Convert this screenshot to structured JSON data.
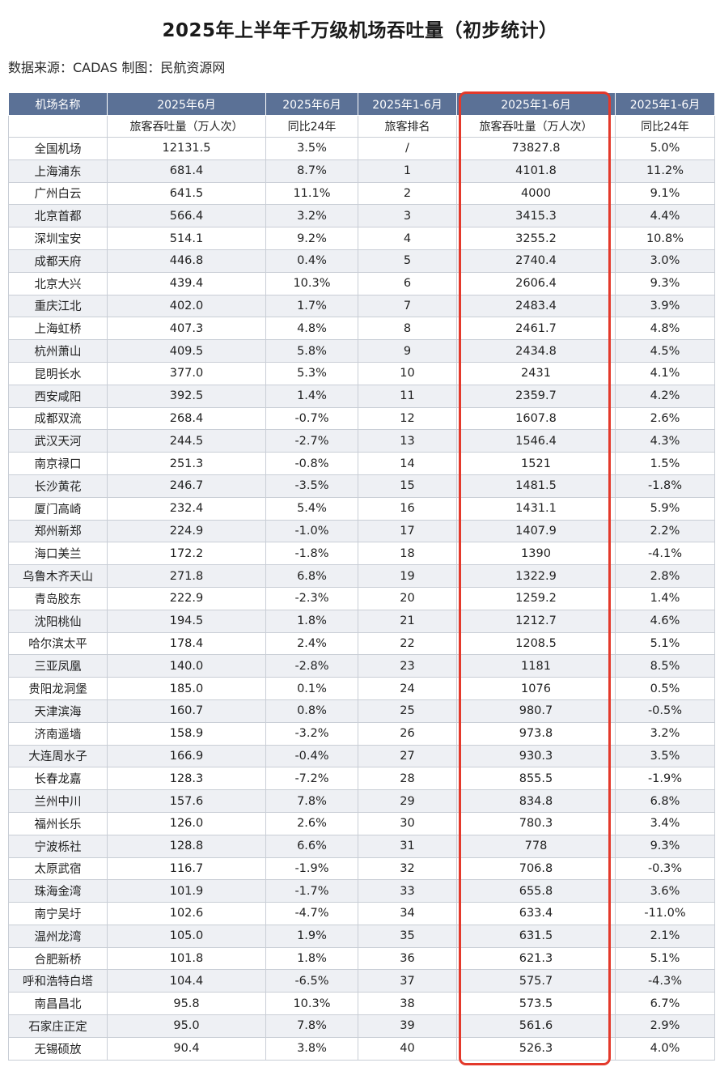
{
  "title": "2025年上半年千万级机场吞吐量（初步统计）",
  "source": "数据来源：CADAS 制图：民航资源网",
  "header_row1": [
    "机场名称",
    "2025年6月",
    "2025年6月",
    "2025年1-6月",
    "2025年1-6月",
    "2025年1-6月"
  ],
  "header_row2": [
    "",
    "旅客吞吐量（万人次）",
    "同比24年",
    "旅客排名",
    "旅客吞吐量（万人次）",
    "同比24年"
  ],
  "rows": [
    [
      "全国机场",
      "12131.5",
      "3.5%",
      "/",
      "73827.8",
      "5.0%"
    ],
    [
      "上海浦东",
      "681.4",
      "8.7%",
      "1",
      "4101.8",
      "11.2%"
    ],
    [
      "广州白云",
      "641.5",
      "11.1%",
      "2",
      "4000",
      "9.1%"
    ],
    [
      "北京首都",
      "566.4",
      "3.2%",
      "3",
      "3415.3",
      "4.4%"
    ],
    [
      "深圳宝安",
      "514.1",
      "9.2%",
      "4",
      "3255.2",
      "10.8%"
    ],
    [
      "成都天府",
      "446.8",
      "0.4%",
      "5",
      "2740.4",
      "3.0%"
    ],
    [
      "北京大兴",
      "439.4",
      "10.3%",
      "6",
      "2606.4",
      "9.3%"
    ],
    [
      "重庆江北",
      "402.0",
      "1.7%",
      "7",
      "2483.4",
      "3.9%"
    ],
    [
      "上海虹桥",
      "407.3",
      "4.8%",
      "8",
      "2461.7",
      "4.8%"
    ],
    [
      "杭州萧山",
      "409.5",
      "5.8%",
      "9",
      "2434.8",
      "4.5%"
    ],
    [
      "昆明长水",
      "377.0",
      "5.3%",
      "10",
      "2431",
      "4.1%"
    ],
    [
      "西安咸阳",
      "392.5",
      "1.4%",
      "11",
      "2359.7",
      "4.2%"
    ],
    [
      "成都双流",
      "268.4",
      "-0.7%",
      "12",
      "1607.8",
      "2.6%"
    ],
    [
      "武汉天河",
      "244.5",
      "-2.7%",
      "13",
      "1546.4",
      "4.3%"
    ],
    [
      "南京禄口",
      "251.3",
      "-0.8%",
      "14",
      "1521",
      "1.5%"
    ],
    [
      "长沙黄花",
      "246.7",
      "-3.5%",
      "15",
      "1481.5",
      "-1.8%"
    ],
    [
      "厦门高崎",
      "232.4",
      "5.4%",
      "16",
      "1431.1",
      "5.9%"
    ],
    [
      "郑州新郑",
      "224.9",
      "-1.0%",
      "17",
      "1407.9",
      "2.2%"
    ],
    [
      "海口美兰",
      "172.2",
      "-1.8%",
      "18",
      "1390",
      "-4.1%"
    ],
    [
      "乌鲁木齐天山",
      "271.8",
      "6.8%",
      "19",
      "1322.9",
      "2.8%"
    ],
    [
      "青岛胶东",
      "222.9",
      "-2.3%",
      "20",
      "1259.2",
      "1.4%"
    ],
    [
      "沈阳桃仙",
      "194.5",
      "1.8%",
      "21",
      "1212.7",
      "4.6%"
    ],
    [
      "哈尔滨太平",
      "178.4",
      "2.4%",
      "22",
      "1208.5",
      "5.1%"
    ],
    [
      "三亚凤凰",
      "140.0",
      "-2.8%",
      "23",
      "1181",
      "8.5%"
    ],
    [
      "贵阳龙洞堡",
      "185.0",
      "0.1%",
      "24",
      "1076",
      "0.5%"
    ],
    [
      "天津滨海",
      "160.7",
      "0.8%",
      "25",
      "980.7",
      "-0.5%"
    ],
    [
      "济南遥墙",
      "158.9",
      "-3.2%",
      "26",
      "973.8",
      "3.2%"
    ],
    [
      "大连周水子",
      "166.9",
      "-0.4%",
      "27",
      "930.3",
      "3.5%"
    ],
    [
      "长春龙嘉",
      "128.3",
      "-7.2%",
      "28",
      "855.5",
      "-1.9%"
    ],
    [
      "兰州中川",
      "157.6",
      "7.8%",
      "29",
      "834.8",
      "6.8%"
    ],
    [
      "福州长乐",
      "126.0",
      "2.6%",
      "30",
      "780.3",
      "3.4%"
    ],
    [
      "宁波栎社",
      "128.8",
      "6.6%",
      "31",
      "778",
      "9.3%"
    ],
    [
      "太原武宿",
      "116.7",
      "-1.9%",
      "32",
      "706.8",
      "-0.3%"
    ],
    [
      "珠海金湾",
      "101.9",
      "-1.7%",
      "33",
      "655.8",
      "3.6%"
    ],
    [
      "南宁吴圩",
      "102.6",
      "-4.7%",
      "34",
      "633.4",
      "-11.0%"
    ],
    [
      "温州龙湾",
      "105.0",
      "1.9%",
      "35",
      "631.5",
      "2.1%"
    ],
    [
      "合肥新桥",
      "101.8",
      "1.8%",
      "36",
      "621.3",
      "5.1%"
    ],
    [
      "呼和浩特白塔",
      "104.4",
      "-6.5%",
      "37",
      "575.7",
      "-4.3%"
    ],
    [
      "南昌昌北",
      "95.8",
      "10.3%",
      "38",
      "573.5",
      "6.7%"
    ],
    [
      "石家庄正定",
      "95.0",
      "7.8%",
      "39",
      "561.6",
      "2.9%"
    ],
    [
      "无锡硕放",
      "90.4",
      "3.8%",
      "40",
      "526.3",
      "4.0%"
    ]
  ],
  "colors": {
    "header_bg": "#5b7196",
    "stripe": "#eef0f4",
    "highlight": "#e3392b"
  }
}
